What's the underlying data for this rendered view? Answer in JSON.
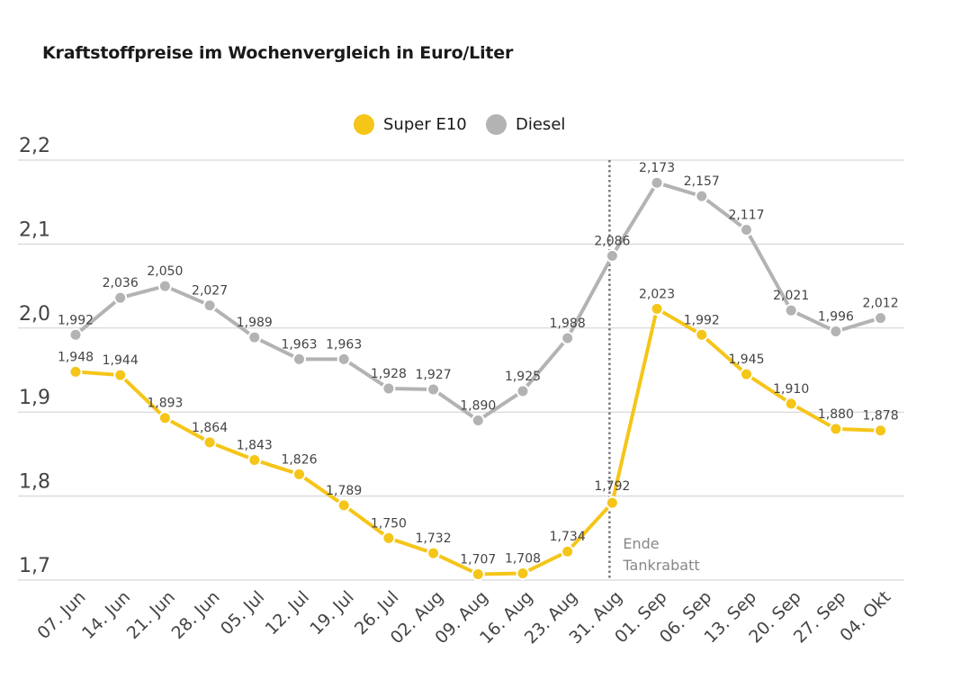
{
  "chart_data": {
    "type": "line",
    "title": "Kraftstoffpreise im Wochenvergleich in Euro/Liter",
    "categories": [
      "07. Jun",
      "14. Jun",
      "21. Jun",
      "28. Jun",
      "05. Jul",
      "12. Jul",
      "19. Jul",
      "26. Jul",
      "02. Aug",
      "09. Aug",
      "16. Aug",
      "23. Aug",
      "31. Aug",
      "01. Sep",
      "06. Sep",
      "13. Sep",
      "20. Sep",
      "27. Sep",
      "04. Okt"
    ],
    "series": [
      {
        "name": "Super E10",
        "color": "#f5c518",
        "values": [
          1.948,
          1.944,
          1.893,
          1.864,
          1.843,
          1.826,
          1.789,
          1.75,
          1.732,
          1.707,
          1.708,
          1.734,
          1.792,
          2.023,
          1.992,
          1.945,
          1.91,
          1.88,
          1.878
        ],
        "labels": [
          "1,948",
          "1,944",
          "1,893",
          "1,864",
          "1,843",
          "1,826",
          "1,789",
          "1,750",
          "1,732",
          "1,707",
          "1,708",
          "1,734",
          "1,792",
          "2,023",
          "1,992",
          "1,945",
          "1,910",
          "1,880",
          "1,878"
        ]
      },
      {
        "name": "Diesel",
        "color": "#b3b3b3",
        "values": [
          1.992,
          2.036,
          2.05,
          2.027,
          1.989,
          1.963,
          1.963,
          1.928,
          1.927,
          1.89,
          1.925,
          1.988,
          2.086,
          2.173,
          2.157,
          2.117,
          2.021,
          1.996,
          2.012
        ],
        "labels": [
          "1,992",
          "2,036",
          "2,050",
          "2,027",
          "1,989",
          "1,963",
          "1,963",
          "1,928",
          "1,927",
          "1,890",
          "1,925",
          "1,988",
          "2,086",
          "2,173",
          "2,157",
          "2,117",
          "2,021",
          "1,996",
          "2,012"
        ]
      }
    ],
    "ylim": [
      1.7,
      2.2
    ],
    "yticks": [
      1.7,
      1.8,
      1.9,
      2.0,
      2.1,
      2.2
    ],
    "ytick_labels": [
      "1,7",
      "1,8",
      "1,9",
      "2,0",
      "2,1",
      "2,2"
    ],
    "grid": true,
    "legend_position": "top-center",
    "annotations": [
      {
        "category": "31. Aug",
        "lines": [
          "Ende",
          "Tankrabatt"
        ],
        "style": "dotted-vertical"
      }
    ]
  }
}
